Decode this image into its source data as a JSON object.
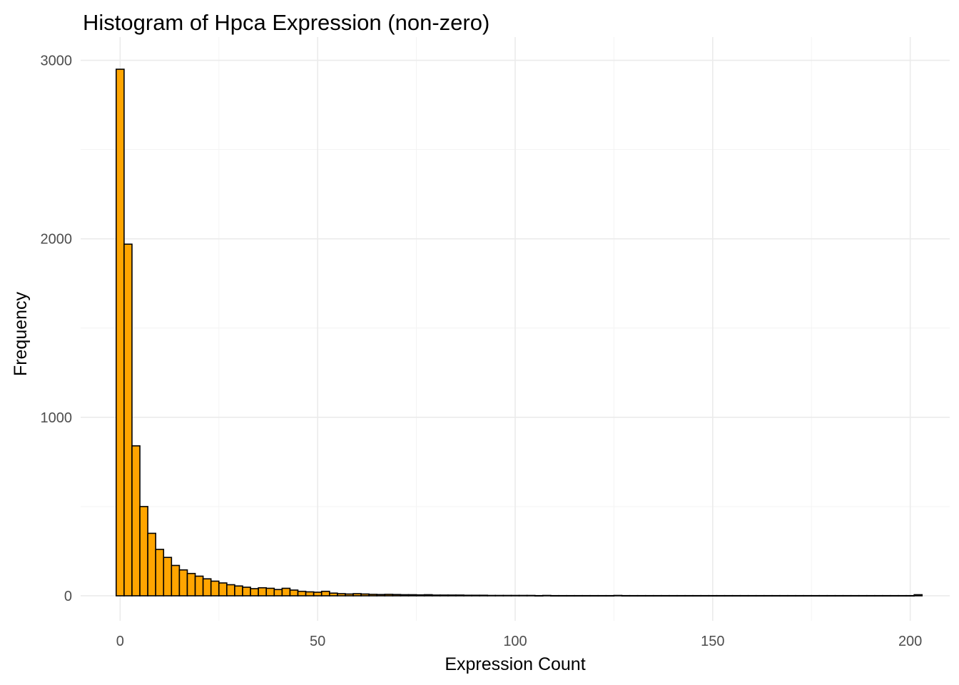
{
  "chart_data": {
    "type": "bar",
    "title": "Histogram of Hpca Expression (non-zero)",
    "xlabel": "Expression Count",
    "ylabel": "Frequency",
    "xlim": [
      -10,
      210
    ],
    "ylim": [
      -140,
      3130
    ],
    "x_ticks": [
      0,
      50,
      100,
      150,
      200
    ],
    "y_ticks": [
      0,
      1000,
      2000,
      3000
    ],
    "x_minor_ticks": [
      25,
      75,
      125,
      175
    ],
    "y_minor_ticks": [
      500,
      1500,
      2500
    ],
    "grid": true,
    "bin_width": 2,
    "bin_start": -1,
    "colors": {
      "fill": "#FFA500",
      "outline": "#000000",
      "grid": "#ebebeb"
    },
    "values": [
      2950,
      1970,
      840,
      500,
      350,
      260,
      215,
      170,
      145,
      125,
      110,
      95,
      82,
      72,
      62,
      55,
      48,
      40,
      45,
      42,
      35,
      42,
      32,
      25,
      22,
      20,
      25,
      15,
      12,
      10,
      12,
      10,
      8,
      7,
      8,
      7,
      6,
      6,
      5,
      6,
      4,
      4,
      4,
      4,
      3,
      3,
      3,
      2,
      2,
      2,
      2,
      2,
      2,
      1,
      2,
      1,
      1,
      1,
      1,
      1,
      1,
      1,
      1,
      2,
      1,
      1,
      1,
      1,
      1,
      1,
      1,
      1,
      1,
      1,
      1,
      1,
      1,
      1,
      1,
      1,
      1,
      1,
      1,
      1,
      1,
      1,
      1,
      1,
      1,
      1,
      1,
      1,
      1,
      1,
      1,
      1,
      1,
      1,
      1,
      1,
      1,
      6
    ]
  }
}
